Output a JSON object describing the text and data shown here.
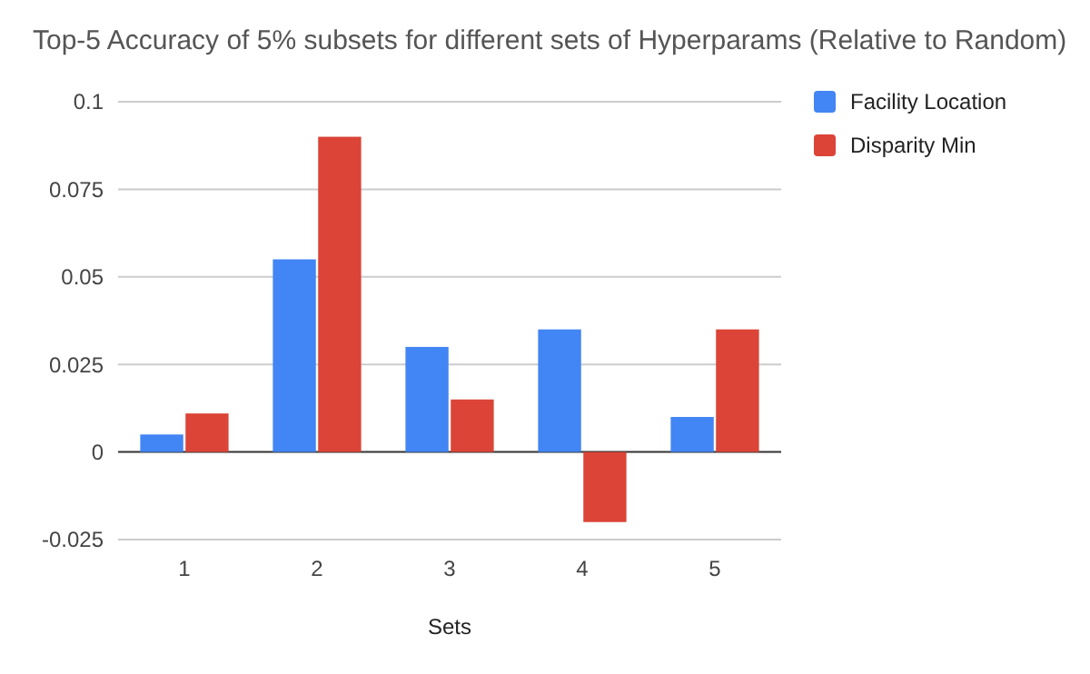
{
  "chart_data": {
    "type": "bar",
    "title": "Top-5 Accuracy of 5% subsets for different sets of Hyperparams (Relative to Random)",
    "xlabel": "Sets",
    "categories": [
      "1",
      "2",
      "3",
      "4",
      "5"
    ],
    "series": [
      {
        "name": "Facility Location",
        "color": "#4285f4",
        "values": [
          0.005,
          0.055,
          0.03,
          0.035,
          0.01
        ]
      },
      {
        "name": "Disparity Min",
        "color": "#db4437",
        "values": [
          0.011,
          0.09,
          0.015,
          -0.02,
          0.035
        ]
      }
    ],
    "ylim": [
      -0.025,
      0.1
    ],
    "yticks": [
      -0.025,
      0,
      0.025,
      0.05,
      0.075,
      0.1
    ],
    "grid": "y",
    "legend": "right"
  }
}
